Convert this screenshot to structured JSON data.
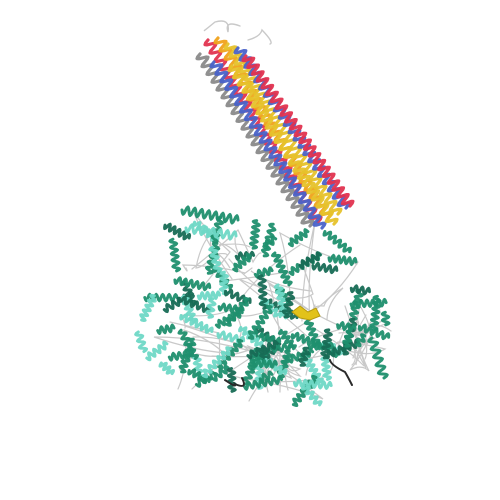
{
  "image": {
    "subject": "protein-structure-cartoon",
    "style": "ribbon-cartoon",
    "background": "#ffffff"
  },
  "colors": {
    "domain_main": "#1f8f6e",
    "domain_light": "#6fd8c6",
    "domain_dark": "#176b55",
    "coil": "#c9c9c9",
    "ligand": "#e2c21a",
    "helix_palette": [
      "#e2334f",
      "#f0a21b",
      "#e6c22b",
      "#4a63c9",
      "#8a8a8a",
      "#3f9a5a",
      "#c24fa0"
    ]
  }
}
